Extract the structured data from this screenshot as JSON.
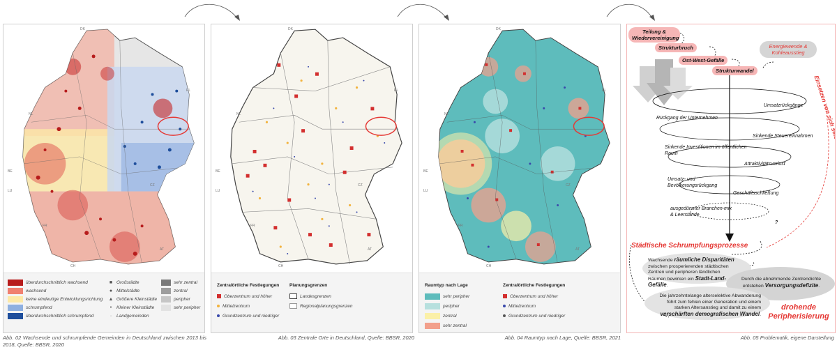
{
  "panels": [
    {
      "id": "map1",
      "country_labels": [
        "DK",
        "NL",
        "PL",
        "BE",
        "LU",
        "CZ",
        "FR",
        "AT",
        "CH"
      ],
      "legend": {
        "col1": [
          {
            "label": "überdurchschnittlich wachsend",
            "color": "#b71c1c"
          },
          {
            "label": "wachsend",
            "color": "#f08070"
          },
          {
            "label": "keine eindeutige Entwicklungsrichtung",
            "color": "#fde9a6"
          },
          {
            "label": "schrumpfend",
            "color": "#8fb0e0"
          },
          {
            "label": "überdurchschnittlich schrumpfend",
            "color": "#1e4e9c"
          }
        ],
        "col2": [
          {
            "label": "Großstädte",
            "symbol": "■"
          },
          {
            "label": "Mittelstädte",
            "symbol": "●"
          },
          {
            "label": "Größere Kleinstädte",
            "symbol": "▲"
          },
          {
            "label": "Kleiner Kleinstädte",
            "symbol": "•"
          },
          {
            "label": "Landgemeinden",
            "symbol": "·"
          }
        ],
        "col3": [
          {
            "label": "sehr zentral",
            "color": "#7a7a7a"
          },
          {
            "label": "zentral",
            "color": "#9e9e9e"
          },
          {
            "label": "peripher",
            "color": "#c6c6c6"
          },
          {
            "label": "sehr peripher",
            "color": "#e2e2e2"
          }
        ]
      },
      "caption": "Abb. 02 Wachsende und schrumpfende Gemeinden in Deutschland zwischen 2013 bis 2018, Quelle: BBSR, 2020"
    },
    {
      "id": "map2",
      "country_labels": [
        "DK",
        "NL",
        "PL",
        "BE",
        "LU",
        "CZ",
        "FR",
        "AT",
        "CH"
      ],
      "legend": {
        "title1": "Zentralörtliche Festlegungen",
        "items1": [
          {
            "label": "Oberzentrum und höher",
            "color": "#d32f2f",
            "kind": "square"
          },
          {
            "label": "Mittelzentrum",
            "color": "#f2b33d",
            "kind": "dot"
          },
          {
            "label": "Grundzentrum und niedriger",
            "color": "#3949ab",
            "kind": "dot"
          }
        ],
        "title2": "Planungsgrenzen",
        "items2": [
          {
            "label": "Landesgrenzen",
            "kind": "thick"
          },
          {
            "label": "Regionalplanungsgrenzen",
            "kind": "thin"
          }
        ]
      },
      "caption": "Abb. 03 Zentrale Orte in Deutschland, Quelle: BBSR, 2020"
    },
    {
      "id": "map3",
      "country_labels": [
        "DK",
        "NL",
        "PL",
        "BE",
        "LU",
        "CZ",
        "FR",
        "AT",
        "CH"
      ],
      "legend": {
        "title1": "Raumtyp nach Lage",
        "items1": [
          {
            "label": "sehr peripher",
            "color": "#5ebcbc"
          },
          {
            "label": "peripher",
            "color": "#b7e0de"
          },
          {
            "label": "zentral",
            "color": "#fbf0a8"
          },
          {
            "label": "sehr zentral",
            "color": "#f2a08c"
          }
        ],
        "title2": "Zentralörtliche Festlegungen",
        "items2": [
          {
            "label": "Oberzentrum und höher",
            "color": "#d32f2f",
            "kind": "square"
          },
          {
            "label": "Mittelzentrum",
            "color": "#3949ab",
            "kind": "dot"
          },
          {
            "label": "Grundzentrum und niedriger",
            "color": "#555555",
            "kind": "dot"
          }
        ]
      },
      "caption": "Abb. 04 Raumtyp nach Lage, Quelle: BBSR, 2021"
    }
  ],
  "diagram": {
    "pills": {
      "teilung": "Teilung & Wiedervereinigung",
      "strukturbruch": "Strukturbruch",
      "ostwest": "Ost-West-Gefälle",
      "strukturwandel": "Strukturwandel",
      "energie": "Energiewende & Kohleausstieg"
    },
    "cycle": {
      "umsatz": "Umsatzrückgänge",
      "unternehmen": "Rückgang der Unternehmen",
      "steuer": "Sinkende Steuereinnahmen",
      "investition": "Sinkende Investitionen im öffentlichen Raum",
      "attraktiv": "Attraktivitätsverlust",
      "bevoelkerung": "Umsatz- und Bevölkerungsrückgang",
      "geschaeft": "Geschäftsschließung",
      "branchen": "ausgedünnter Branchen-mix & Leerstände",
      "question": "?"
    },
    "vertical_text": "Einsetzen von sich selbstverstärkenden sozial-räumlichen Abwärtsprozessen",
    "schrumpfung": "Städtische Schrumpfungsprozesse",
    "paragraph1_pre": "Wachsende",
    "paragraph1_bold": "räumliche Disparitäten",
    "paragraph1_mid": "zwischen prosperierenden städtischen Zentren und peripheren ländlichen Räumen bewirken ein",
    "paragraph1_bold2": "Stadt-Land-Gefälle",
    "paragraph2_pre": "Durch die abnehmende Zentrendichte entstehen",
    "paragraph2_bold": "Versorgungsdefizite",
    "paragraph3_pre": "Die jahrzehntelange alterselektive Abwanderung führt zum fehlen einer Generation und einem starken Altersanstieg und damit zu einem",
    "paragraph3_bold": "verschärften demografischen Wandel",
    "drohende": "drohende Peripherisierung"
  },
  "diagram_caption": "Abb. 05 Problematik, eigene Darstellung"
}
